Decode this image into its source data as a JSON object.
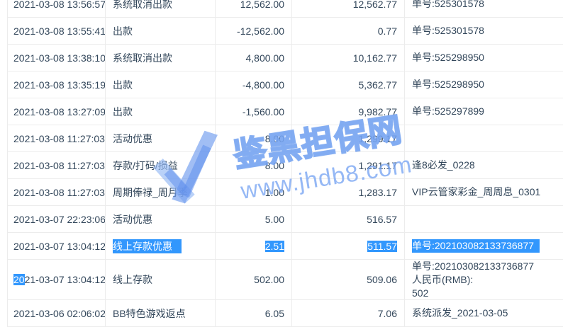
{
  "watermark": {
    "brand": "鉴黑担保网",
    "url": "www.jhdb8.com",
    "logo": "checkmark-ribbon-logo"
  },
  "colors": {
    "selection_highlight": "#3297fd",
    "text": "#33475b",
    "row_border": "#ececec",
    "watermark_blue": "#7aa8ef"
  },
  "table": {
    "rows": [
      {
        "time": "2021-03-08 13:56:57",
        "type": "系统取消出款",
        "amount": "12,562.00",
        "balance": "12,562.77",
        "memo": "单号:525301578"
      },
      {
        "time": "2021-03-08 13:55:41",
        "type": "出款",
        "amount": "-12,562.00",
        "balance": "0.77",
        "memo": "单号:525301578"
      },
      {
        "time": "2021-03-08 13:38:10",
        "type": "系统取消出款",
        "amount": "4,800.00",
        "balance": "10,162.77",
        "memo": "单号:525298950"
      },
      {
        "time": "2021-03-08 13:35:19",
        "type": "出款",
        "amount": "-4,800.00",
        "balance": "5,362.77",
        "memo": "单号:525298950"
      },
      {
        "time": "2021-03-08 13:27:09",
        "type": "出款",
        "amount": "-1,560.00",
        "balance": "9,982.77",
        "memo": "单号:525297899"
      },
      {
        "time": "2021-03-08 11:27:03",
        "type": "活动优惠",
        "amount": "8.00",
        "balance": "1,299.17",
        "memo": ""
      },
      {
        "time": "2021-03-08 11:27:03",
        "type": "存款/打码/损益",
        "amount": "8.00",
        "balance": "1,291.17",
        "memo": "逢8必发_0228"
      },
      {
        "time": "2021-03-08 11:27:03",
        "type": "周期俸禄_周月季",
        "amount": "1.00",
        "balance": "1,283.17",
        "memo": "VIP云管家彩金_周周息_0301"
      },
      {
        "time": "2021-03-07 22:23:06",
        "type": "活动优惠",
        "amount": "5.00",
        "balance": "516.57",
        "memo": ""
      },
      {
        "time": "2021-03-07 13:04:12",
        "type": "线上存款优惠",
        "amount": "2.51",
        "balance": "511.57",
        "memo": "单号:202103082133736877",
        "selected_fields": [
          "type",
          "amount",
          "balance",
          "memo"
        ]
      },
      {
        "time": "2021-03-07 13:04:12",
        "type": "线上存款",
        "amount": "502.00",
        "balance": "509.06",
        "memo_lines": [
          "单号:202103082133736877",
          "人民币(RMB):",
          "502"
        ],
        "time_selected_chars": 2
      },
      {
        "time": "2021-03-06 02:06:02",
        "type": "BB特色游戏返点",
        "amount": "6.05",
        "balance": "7.06",
        "memo": "系统派发_2021-03-05"
      }
    ]
  }
}
